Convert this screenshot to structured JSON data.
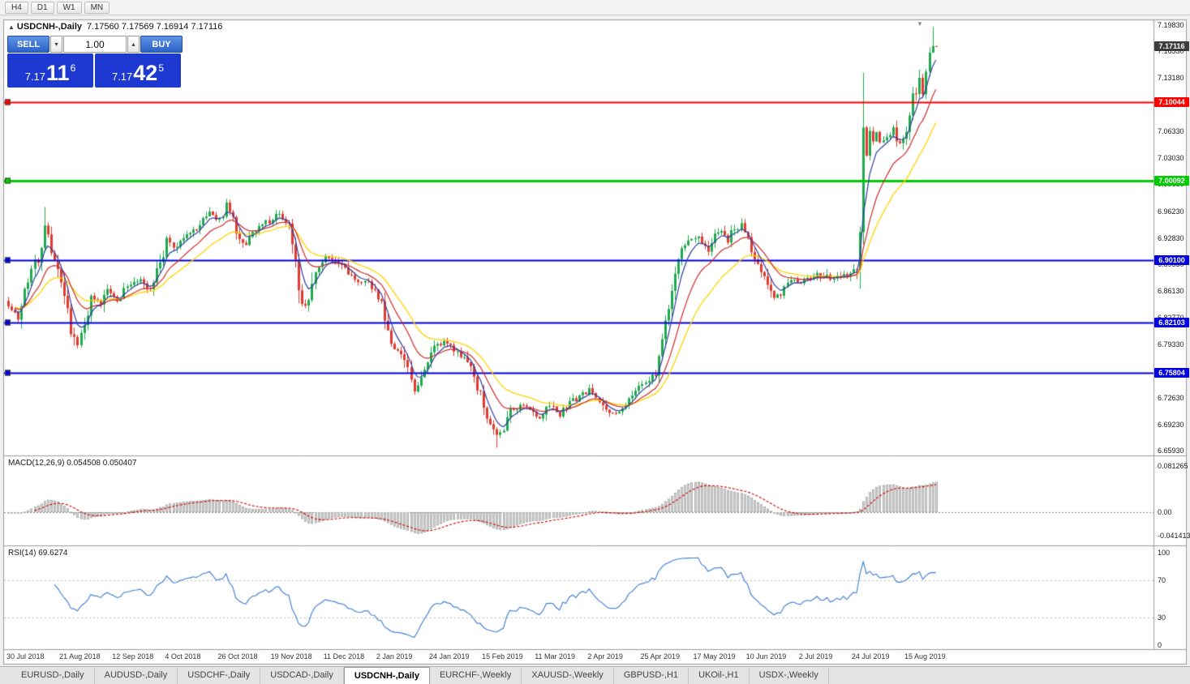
{
  "toolbar": {
    "timeframes": [
      "H4",
      "D1",
      "W1",
      "MN"
    ]
  },
  "chart_header": {
    "collapse_icon": "▲",
    "symbol": "USDCNH-,Daily",
    "ohlc": "7.17560 7.17569 7.16914 7.17116"
  },
  "trade_panel": {
    "sell_label": "SELL",
    "buy_label": "BUY",
    "volume": "1.00",
    "volume_down_icon": "▾",
    "volume_up_icon": "▴",
    "bid": {
      "prefix": "7.17",
      "big": "11",
      "sup": "6"
    },
    "ask": {
      "prefix": "7.17",
      "big": "42",
      "sup": "5"
    }
  },
  "price_axis": {
    "ticks": [
      "7.19830",
      "7.16530",
      "7.13180",
      "7.09830",
      "7.06330",
      "7.03030",
      "6.99680",
      "6.96230",
      "6.92830",
      "6.89530",
      "6.86130",
      "6.82770",
      "6.79330",
      "6.75980",
      "6.72630",
      "6.69230",
      "6.65930"
    ],
    "current_badge": {
      "value": "7.17116",
      "color": "#3c3c3c"
    }
  },
  "levels": [
    {
      "value": "7.10044",
      "price": 7.10044,
      "color": "#ff0000",
      "width": 2
    },
    {
      "value": "7.00092",
      "price": 7.00092,
      "color": "#00cc00",
      "width": 3
    },
    {
      "value": "6.90100",
      "price": 6.901,
      "color": "#0000e0",
      "width": 2
    },
    {
      "value": "6.82103",
      "price": 6.82103,
      "color": "#0000e0",
      "width": 2
    },
    {
      "value": "6.75804",
      "price": 6.75804,
      "color": "#0000e0",
      "width": 2
    }
  ],
  "macd_panel": {
    "title": "MACD(12,26,9) 0.054508 0.050407",
    "labels": [
      "0.081265",
      "0.00",
      "-0.041413"
    ]
  },
  "rsi_panel": {
    "title": "RSI(14) 69.6274",
    "labels": [
      "100",
      "70",
      "30",
      "0"
    ]
  },
  "date_axis": [
    "30 Jul 2018",
    "21 Aug 2018",
    "12 Sep 2018",
    "4 Oct 2018",
    "26 Oct 2018",
    "19 Nov 2018",
    "11 Dec 2018",
    "2 Jan 2019",
    "24 Jan 2019",
    "15 Feb 2019",
    "11 Mar 2019",
    "2 Apr 2019",
    "25 Apr 2019",
    "17 May 2019",
    "10 Jun 2019",
    "2 Jul 2019",
    "24 Jul 2019",
    "15 Aug 2019"
  ],
  "tabs": [
    {
      "label": "EURUSD-,Daily",
      "active": false
    },
    {
      "label": "AUDUSD-,Daily",
      "active": false
    },
    {
      "label": "USDCHF-,Daily",
      "active": false
    },
    {
      "label": "USDCAD-,Daily",
      "active": false
    },
    {
      "label": "USDCNH-,Daily",
      "active": true
    },
    {
      "label": "EURCHF-,Weekly",
      "active": false
    },
    {
      "label": "XAUUSD-,Weekly",
      "active": false
    },
    {
      "label": "GBPUSD-,H1",
      "active": false
    },
    {
      "label": "UKOil-,H1",
      "active": false
    },
    {
      "label": "USDX-,Weekly",
      "active": false
    }
  ],
  "chart_data": {
    "type": "candlestick",
    "symbol": "USDCNH",
    "timeframe": "Daily",
    "n_candles": 282,
    "candles_per_date_label": 16,
    "price_range": [
      6.6593,
      7.1983
    ],
    "last_close": 7.17116,
    "seed": 7,
    "close_anchors": [
      [
        0,
        6.845
      ],
      [
        3,
        6.825
      ],
      [
        6,
        6.875
      ],
      [
        9,
        6.905
      ],
      [
        11,
        6.945
      ],
      [
        13,
        6.915
      ],
      [
        16,
        6.865
      ],
      [
        19,
        6.815
      ],
      [
        21,
        6.79
      ],
      [
        23,
        6.825
      ],
      [
        25,
        6.85
      ],
      [
        28,
        6.845
      ],
      [
        30,
        6.862
      ],
      [
        33,
        6.85
      ],
      [
        36,
        6.868
      ],
      [
        40,
        6.878
      ],
      [
        43,
        6.86
      ],
      [
        46,
        6.895
      ],
      [
        48,
        6.925
      ],
      [
        51,
        6.915
      ],
      [
        54,
        6.932
      ],
      [
        58,
        6.946
      ],
      [
        61,
        6.958
      ],
      [
        64,
        6.952
      ],
      [
        66,
        6.972
      ],
      [
        68,
        6.952
      ],
      [
        70,
        6.93
      ],
      [
        72,
        6.922
      ],
      [
        74,
        6.94
      ],
      [
        78,
        6.948
      ],
      [
        82,
        6.958
      ],
      [
        85,
        6.944
      ],
      [
        87,
        6.9
      ],
      [
        89,
        6.845
      ],
      [
        91,
        6.85
      ],
      [
        93,
        6.89
      ],
      [
        96,
        6.905
      ],
      [
        99,
        6.897
      ],
      [
        102,
        6.89
      ],
      [
        105,
        6.877
      ],
      [
        108,
        6.873
      ],
      [
        111,
        6.863
      ],
      [
        113,
        6.845
      ],
      [
        115,
        6.808
      ],
      [
        117,
        6.788
      ],
      [
        119,
        6.782
      ],
      [
        121,
        6.76
      ],
      [
        123,
        6.732
      ],
      [
        125,
        6.75
      ],
      [
        127,
        6.772
      ],
      [
        129,
        6.788
      ],
      [
        132,
        6.795
      ],
      [
        135,
        6.788
      ],
      [
        138,
        6.778
      ],
      [
        140,
        6.762
      ],
      [
        142,
        6.74
      ],
      [
        144,
        6.718
      ],
      [
        146,
        6.695
      ],
      [
        148,
        6.678
      ],
      [
        150,
        6.69
      ],
      [
        152,
        6.708
      ],
      [
        155,
        6.718
      ],
      [
        158,
        6.708
      ],
      [
        161,
        6.7
      ],
      [
        164,
        6.714
      ],
      [
        167,
        6.706
      ],
      [
        170,
        6.718
      ],
      [
        173,
        6.727
      ],
      [
        176,
        6.735
      ],
      [
        179,
        6.72
      ],
      [
        182,
        6.708
      ],
      [
        185,
        6.712
      ],
      [
        188,
        6.722
      ],
      [
        191,
        6.738
      ],
      [
        194,
        6.748
      ],
      [
        196,
        6.758
      ],
      [
        198,
        6.792
      ],
      [
        200,
        6.845
      ],
      [
        202,
        6.89
      ],
      [
        204,
        6.912
      ],
      [
        206,
        6.925
      ],
      [
        208,
        6.932
      ],
      [
        210,
        6.918
      ],
      [
        212,
        6.912
      ],
      [
        214,
        6.93
      ],
      [
        216,
        6.938
      ],
      [
        218,
        6.926
      ],
      [
        220,
        6.94
      ],
      [
        222,
        6.945
      ],
      [
        224,
        6.928
      ],
      [
        226,
        6.905
      ],
      [
        228,
        6.888
      ],
      [
        230,
        6.872
      ],
      [
        232,
        6.85
      ],
      [
        234,
        6.858
      ],
      [
        236,
        6.87
      ],
      [
        238,
        6.875
      ],
      [
        240,
        6.873
      ],
      [
        243,
        6.878
      ],
      [
        246,
        6.882
      ],
      [
        249,
        6.876
      ],
      [
        252,
        6.88
      ],
      [
        255,
        6.883
      ],
      [
        257,
        6.892
      ],
      [
        258,
        6.925
      ],
      [
        259,
        7.052
      ],
      [
        260,
        7.032
      ],
      [
        261,
        7.068
      ],
      [
        262,
        7.048
      ],
      [
        263,
        7.062
      ],
      [
        264,
        7.052
      ],
      [
        266,
        7.058
      ],
      [
        268,
        7.066
      ],
      [
        270,
        7.048
      ],
      [
        272,
        7.068
      ],
      [
        274,
        7.105
      ],
      [
        276,
        7.128
      ],
      [
        277,
        7.105
      ],
      [
        278,
        7.148
      ],
      [
        279,
        7.162
      ],
      [
        280,
        7.172
      ],
      [
        281,
        7.17116
      ]
    ],
    "forced_extremes": [
      {
        "i": 11,
        "high": 6.968
      },
      {
        "i": 66,
        "high": 6.978
      },
      {
        "i": 148,
        "low": 6.663
      },
      {
        "i": 259,
        "high": 7.138,
        "low": 6.92
      },
      {
        "i": 276,
        "high": 7.142
      },
      {
        "i": 280,
        "high": 7.196
      }
    ],
    "ma_periods": {
      "fast": 5,
      "mid": 13,
      "slow": 24
    },
    "colors": {
      "up": "#1fa94e",
      "down": "#e23a2e",
      "ma_fast": "#2e3f9f",
      "ma_mid": "#cf2a2a",
      "ma_slow": "#ffd400",
      "macd_hist_fill": "#d2d2d2",
      "macd_hist_edge": "#9d9d9d",
      "macd_signal": "#cc0000",
      "rsi": "#3b7bd4"
    },
    "macd": {
      "fast": 12,
      "slow": 26,
      "signal": 9,
      "current": 0.054508,
      "signal_current": 0.050407,
      "scale_max": 0.081265,
      "scale_min": -0.041413
    },
    "rsi": {
      "period": 14,
      "current": 69.6274,
      "levels": [
        70,
        30
      ]
    }
  }
}
